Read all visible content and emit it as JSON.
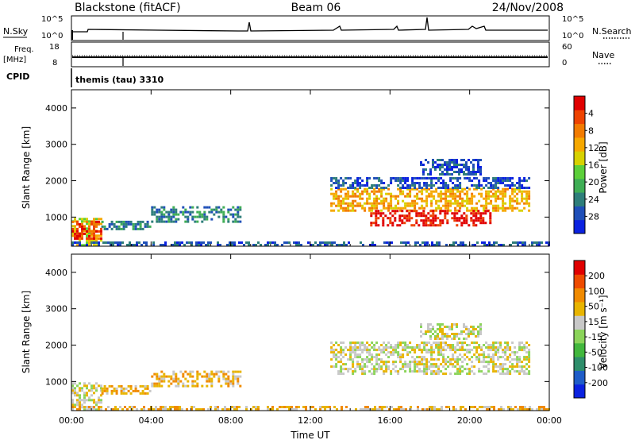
{
  "header": {
    "station": "Blackstone (fitACF)",
    "beam": "Beam 06",
    "date": "24/Nov/2008"
  },
  "status_panels": {
    "nsky_label": "N.Sky",
    "nsearch_label": "N.Search",
    "nsky_ticks": [
      "10^5",
      "10^0"
    ],
    "nsearch_ticks": [
      "10^5",
      "10^0"
    ],
    "freq_label_1": "Freq.",
    "freq_label_2": "[MHz]",
    "freq_ticks": [
      "18",
      "8"
    ],
    "nave_label": "Nave",
    "nave_ticks": [
      "60",
      "0"
    ],
    "cpid_label": "CPID",
    "cpid_value": "themis (tau) 3310"
  },
  "colors": {
    "power_scale": [
      "#0b22e0",
      "#1f4fb8",
      "#2e7e7a",
      "#3fae55",
      "#5ccf3a",
      "#d7d100",
      "#f6a800",
      "#f27b00",
      "#ee4300",
      "#e00000"
    ],
    "velocity_scale": [
      "#0b22e0",
      "#1f5dc8",
      "#2e8e6b",
      "#42b73d",
      "#8bd45a",
      "#c8c8c8",
      "#e8b400",
      "#f08a00",
      "#ee4b00",
      "#e00000"
    ]
  },
  "chart_data": [
    {
      "type": "heatmap",
      "name": "power",
      "xlabel": "",
      "ylabel": "Slant Range [km]",
      "ylim": [
        200,
        4500
      ],
      "yticks": [
        "1000",
        "2000",
        "3000",
        "4000"
      ],
      "xlim": [
        0,
        24
      ],
      "xticks": [
        "00:00",
        "04:00",
        "08:00",
        "12:00",
        "16:00",
        "20:00",
        "00:00"
      ],
      "colorbar_label": "Power [dB]",
      "colorbar_ticks": [
        "4",
        "8",
        "12",
        "16",
        "20",
        "24",
        "28"
      ],
      "regions": [
        {
          "t0": 0.0,
          "t1": 1.5,
          "r0": 200,
          "r1": 980,
          "level": 5
        },
        {
          "t0": 0.0,
          "t1": 1.5,
          "r0": 400,
          "r1": 900,
          "level": 8
        },
        {
          "t0": 0.0,
          "t1": 24.0,
          "r0": 200,
          "r1": 330,
          "level": 1
        },
        {
          "t0": 1.5,
          "t1": 4.0,
          "r0": 700,
          "r1": 900,
          "level": 2
        },
        {
          "t0": 4.0,
          "t1": 8.5,
          "r0": 850,
          "r1": 1300,
          "level": 2
        },
        {
          "t0": 13.0,
          "t1": 23.0,
          "r0": 1200,
          "r1": 1800,
          "level": 6
        },
        {
          "t0": 15.0,
          "t1": 21.0,
          "r0": 800,
          "r1": 1200,
          "level": 9
        },
        {
          "t0": 13.0,
          "t1": 23.0,
          "r0": 1800,
          "r1": 2100,
          "level": 1
        },
        {
          "t0": 17.5,
          "t1": 20.5,
          "r0": 2200,
          "r1": 2600,
          "level": 1
        }
      ]
    },
    {
      "type": "heatmap",
      "name": "velocity",
      "xlabel": "Time UT",
      "ylabel": "Slant Range [km]",
      "ylim": [
        200,
        4500
      ],
      "yticks": [
        "1000",
        "2000",
        "3000",
        "4000"
      ],
      "xlim": [
        0,
        24
      ],
      "xticks": [
        "00:00",
        "04:00",
        "08:00",
        "12:00",
        "16:00",
        "20:00",
        "00:00"
      ],
      "colorbar_label": "Velocity [m s⁻¹]",
      "colorbar_ticks": [
        "200",
        "100",
        "50",
        "15",
        "-15",
        "-50",
        "-100",
        "-200"
      ],
      "regions": [
        {
          "t0": 0.0,
          "t1": 1.5,
          "r0": 200,
          "r1": 980,
          "level": 5
        },
        {
          "t0": 0.0,
          "t1": 24.0,
          "r0": 200,
          "r1": 330,
          "level": 6
        },
        {
          "t0": 1.5,
          "t1": 4.0,
          "r0": 700,
          "r1": 900,
          "level": 6
        },
        {
          "t0": 4.0,
          "t1": 8.5,
          "r0": 850,
          "r1": 1300,
          "level": 6
        },
        {
          "t0": 13.0,
          "t1": 23.0,
          "r0": 1200,
          "r1": 1900,
          "level": 5
        },
        {
          "t0": 13.0,
          "t1": 23.0,
          "r0": 1900,
          "r1": 2100,
          "level": 5
        },
        {
          "t0": 17.5,
          "t1": 20.5,
          "r0": 2200,
          "r1": 2600,
          "level": 5
        }
      ]
    }
  ]
}
